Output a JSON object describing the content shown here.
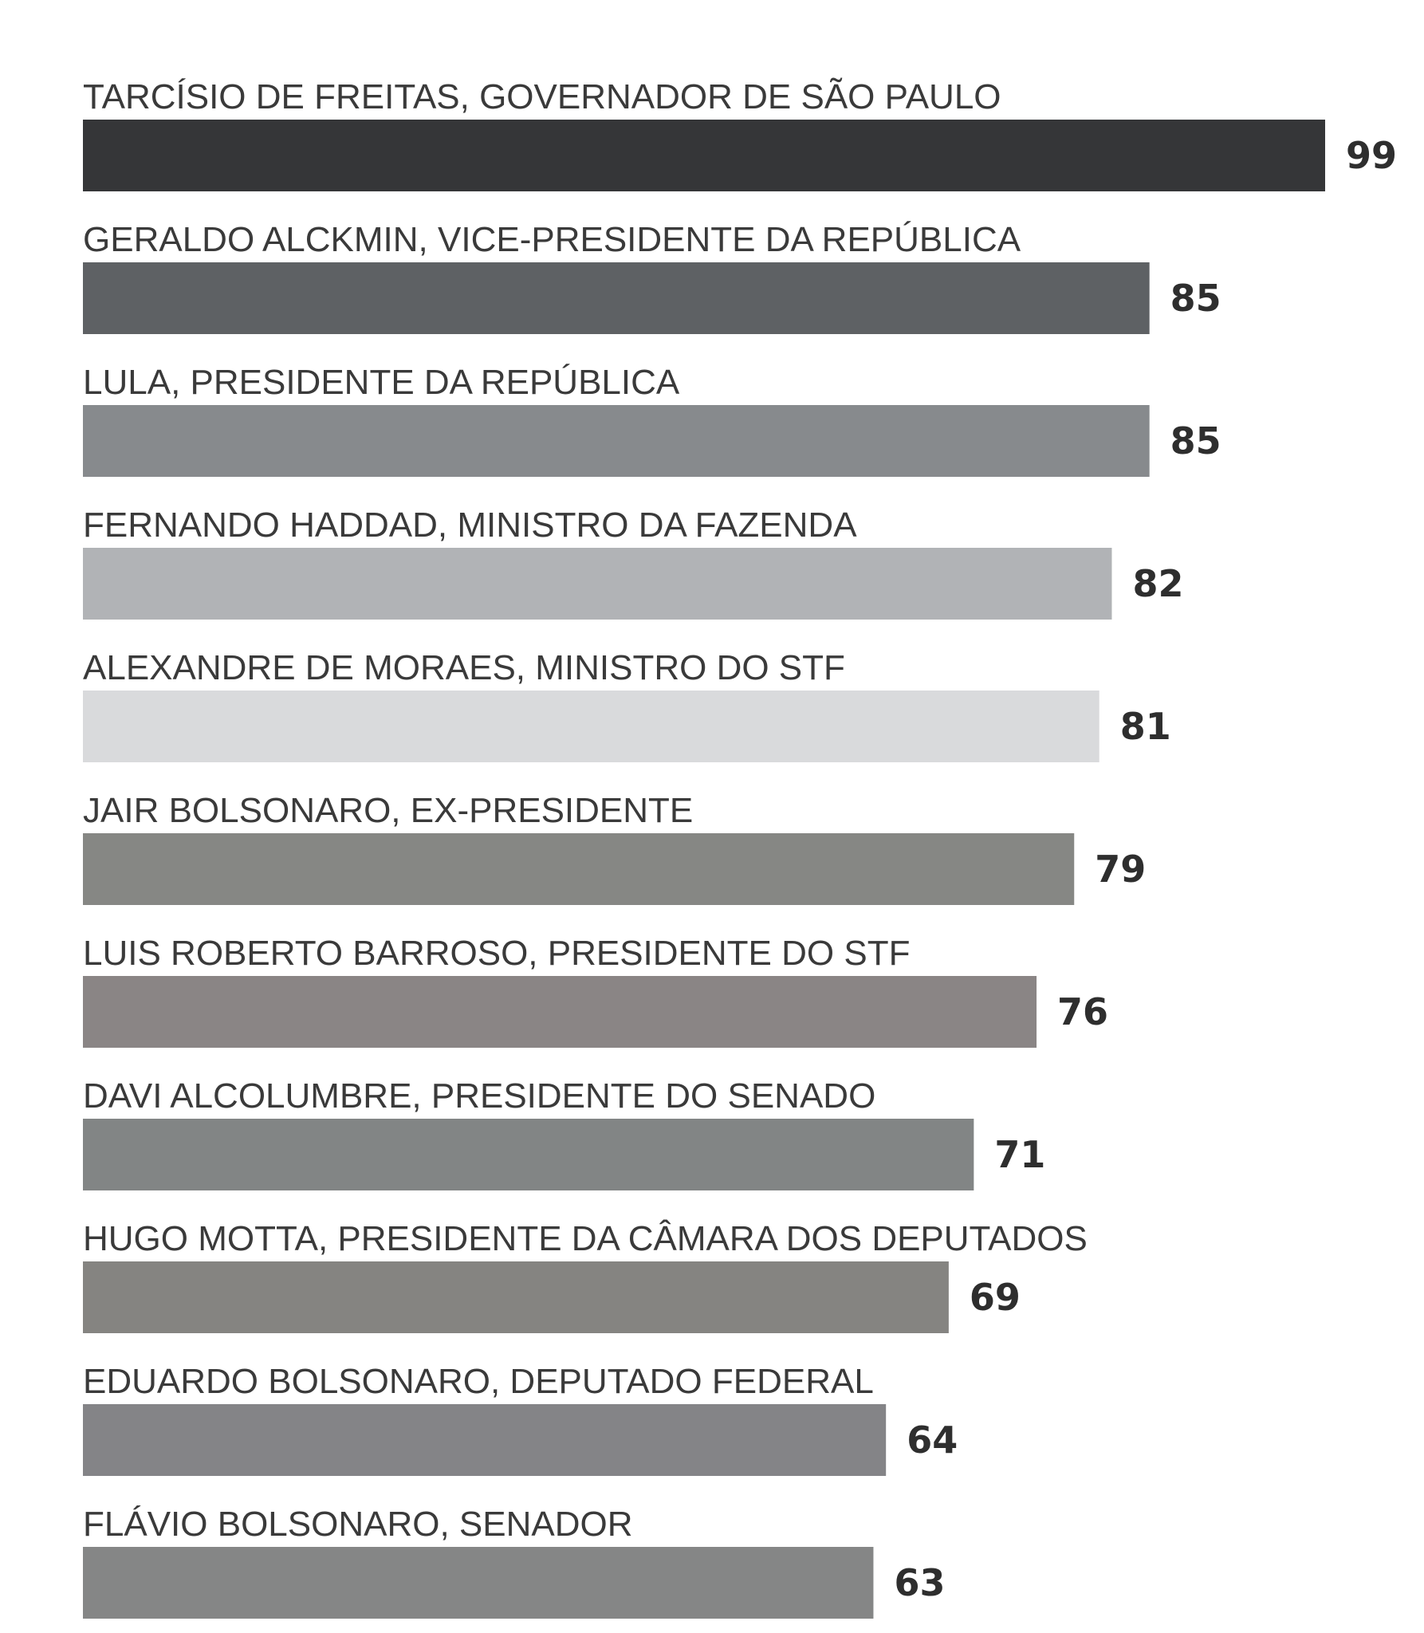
{
  "chart_data": {
    "type": "bar",
    "orientation": "horizontal",
    "categories": [
      "TARCÍSIO DE FREITAS, GOVERNADOR DE SÃO PAULO",
      "GERALDO ALCKMIN, VICE-PRESIDENTE DA REPÚBLICA",
      "LULA, PRESIDENTE DA REPÚBLICA",
      "FERNANDO HADDAD, MINISTRO DA FAZENDA",
      "ALEXANDRE DE MORAES, MINISTRO DO STF",
      "JAIR BOLSONARO, EX-PRESIDENTE",
      "LUIS ROBERTO BARROSO, PRESIDENTE DO STF",
      "DAVI ALCOLUMBRE, PRESIDENTE DO SENADO",
      "HUGO MOTTA, PRESIDENTE DA CÂMARA DOS DEPUTADOS",
      "EDUARDO BOLSONARO, DEPUTADO FEDERAL",
      "FLÁVIO BOLSONARO, SENADOR"
    ],
    "values": [
      99,
      85,
      85,
      82,
      81,
      79,
      76,
      71,
      69,
      64,
      63
    ],
    "colors": [
      "#353638",
      "#5e6164",
      "#878a8d",
      "#b1b3b6",
      "#d9dadc",
      "#868784",
      "#8a8585",
      "#828585",
      "#858481",
      "#848487",
      "#858686"
    ],
    "xlim": [
      0,
      99
    ],
    "grid": false,
    "legend": "none",
    "title": "",
    "xlabel": "",
    "ylabel": ""
  }
}
